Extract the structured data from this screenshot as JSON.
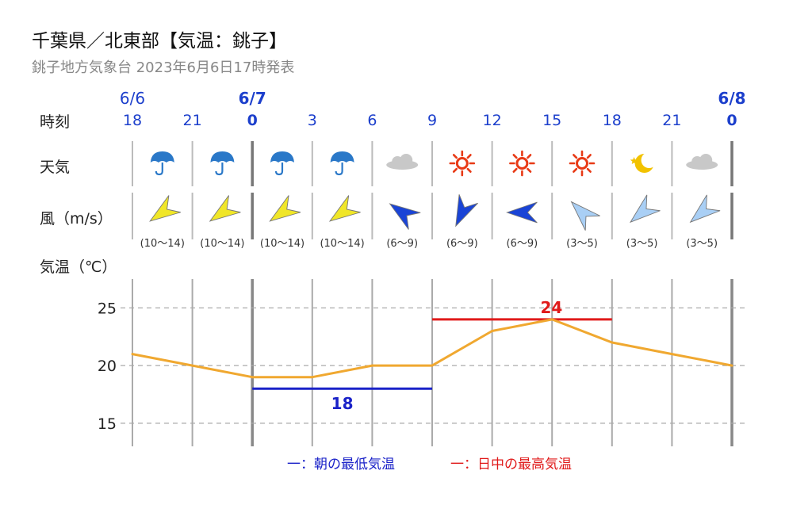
{
  "header": {
    "title": "千葉県／北東部【気温：銚子】",
    "subtitle": "銚子地方気象台 2023年6月6日17時発表"
  },
  "row_labels": {
    "time": "時刻",
    "weather": "天気",
    "wind": "風（m/s）",
    "temp": "気温（℃）"
  },
  "dates": [
    "6/6",
    "6/7",
    "6/8"
  ],
  "hours": [
    "18",
    "21",
    "0",
    "3",
    "6",
    "9",
    "12",
    "15",
    "18",
    "21",
    "0"
  ],
  "weather_icons": [
    "rain-umbrella-icon",
    "rain-umbrella-icon",
    "rain-umbrella-icon",
    "rain-umbrella-icon",
    "cloud-icon",
    "sun-icon",
    "sun-icon",
    "sun-icon",
    "moon-star-icon",
    "cloud-icon"
  ],
  "wind": [
    {
      "range": "(10～14)",
      "color": "#f0e628"
    },
    {
      "range": "(10～14)",
      "color": "#f0e628"
    },
    {
      "range": "(10～14)",
      "color": "#f0e628"
    },
    {
      "range": "(10～14)",
      "color": "#f0e628"
    },
    {
      "range": "(6～9)",
      "color": "#1a44d6"
    },
    {
      "range": "(6～9)",
      "color": "#1a44d6"
    },
    {
      "range": "(6～9)",
      "color": "#1a44d6"
    },
    {
      "range": "(3～5)",
      "color": "#a9cff5"
    },
    {
      "range": "(3～5)",
      "color": "#a9cff5"
    },
    {
      "range": "(3～5)",
      "color": "#a9cff5"
    }
  ],
  "colors": {
    "date_blue": "#1c3fcc",
    "temp_line": "#f0a830",
    "min_line": "#1a22c8",
    "max_line": "#e01a1a",
    "grid": "#aaaaaa",
    "rain_icon": "#2a78c8",
    "sun_icon": "#e83a16",
    "moon_icon": "#f2c200",
    "cloud_icon": "#c8c8c8"
  },
  "legend": {
    "min": "一：朝の最低気温",
    "max": "一：日中の最高気温"
  },
  "chart_data": {
    "type": "line",
    "x": [
      "6/6 18",
      "6/6 21",
      "6/7 0",
      "6/7 3",
      "6/7 6",
      "6/7 9",
      "6/7 12",
      "6/7 15",
      "6/7 18",
      "6/7 21",
      "6/8 0"
    ],
    "series": [
      {
        "values": [
          21,
          20,
          19,
          19,
          20,
          20,
          23,
          24,
          22,
          21,
          20
        ]
      }
    ],
    "yticks": [
      15,
      20,
      25
    ],
    "ylim": [
      13,
      27.5
    ],
    "ylabel": "気温（℃）",
    "grid": true,
    "min_temp": {
      "value": 18,
      "label": "18",
      "from": "6/7 0",
      "to": "6/7 9"
    },
    "max_temp": {
      "value": 24,
      "label": "24",
      "from": "6/7 9",
      "to": "6/7 18"
    }
  }
}
